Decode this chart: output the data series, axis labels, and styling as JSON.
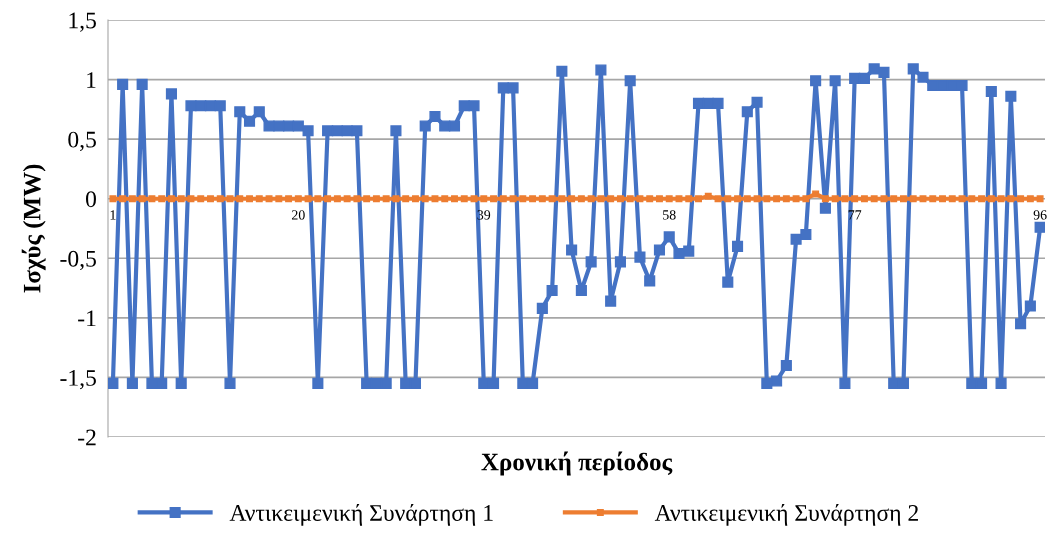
{
  "chart_data": {
    "type": "line",
    "xlabel": "Χρονική περίοδος",
    "ylabel": "Ισχύς (MW)",
    "categories": [
      "1",
      null,
      null,
      null,
      null,
      null,
      null,
      null,
      null,
      null,
      null,
      null,
      null,
      null,
      null,
      null,
      null,
      null,
      null,
      "20",
      null,
      null,
      null,
      null,
      null,
      null,
      null,
      null,
      null,
      null,
      null,
      null,
      null,
      null,
      null,
      null,
      null,
      null,
      "39",
      null,
      null,
      null,
      null,
      null,
      null,
      null,
      null,
      null,
      null,
      null,
      null,
      null,
      null,
      null,
      null,
      null,
      null,
      "58",
      null,
      null,
      null,
      null,
      null,
      null,
      null,
      null,
      null,
      null,
      null,
      null,
      null,
      null,
      null,
      null,
      null,
      null,
      "77",
      null,
      null,
      null,
      null,
      null,
      null,
      null,
      null,
      null,
      null,
      null,
      null,
      null,
      null,
      null,
      null,
      null,
      null,
      "96"
    ],
    "series": [
      {
        "name": "Αντικειμενική Συνάρτηση 1",
        "color": "#4472c4",
        "values": [
          -1.55,
          0.96,
          -1.55,
          0.96,
          -1.55,
          -1.55,
          0.88,
          -1.55,
          0.78,
          0.78,
          0.78,
          0.78,
          -1.55,
          0.73,
          0.65,
          0.73,
          0.61,
          0.61,
          0.61,
          0.61,
          0.57,
          -1.55,
          0.57,
          0.57,
          0.57,
          0.57,
          -1.55,
          -1.55,
          -1.55,
          0.57,
          -1.55,
          -1.55,
          0.61,
          0.69,
          0.61,
          0.61,
          0.78,
          0.78,
          -1.55,
          -1.55,
          0.93,
          0.93,
          -1.55,
          -1.55,
          -0.92,
          -0.77,
          1.07,
          -0.43,
          -0.77,
          -0.53,
          1.08,
          -0.86,
          -0.53,
          0.99,
          -0.49,
          -0.69,
          -0.43,
          -0.32,
          -0.46,
          -0.44,
          0.8,
          0.8,
          0.8,
          -0.7,
          -0.4,
          0.73,
          0.81,
          -1.55,
          -1.53,
          -1.4,
          -0.34,
          -0.3,
          0.99,
          -0.08,
          0.99,
          -1.55,
          1.01,
          1.01,
          1.09,
          1.06,
          -1.55,
          -1.55,
          1.09,
          1.02,
          0.95,
          0.95,
          0.95,
          0.95,
          -1.55,
          -1.55,
          0.9,
          -1.55,
          0.86,
          -1.05,
          -0.9,
          -0.24
        ]
      },
      {
        "name": "Αντικειμενική Συνάρτηση 2",
        "color": "#ed7d31",
        "values": [
          0,
          0,
          0,
          0,
          0,
          0,
          0,
          0,
          0,
          0,
          0,
          0,
          0,
          0,
          0,
          0,
          0,
          0,
          0,
          0,
          0,
          0,
          0,
          0,
          0,
          0,
          0,
          0,
          0,
          0,
          0,
          0,
          0,
          0,
          0,
          0,
          0,
          0,
          0,
          0,
          0,
          0,
          0,
          0,
          0,
          0,
          0,
          0,
          0,
          0,
          0,
          0,
          0,
          0,
          0,
          0,
          0,
          0,
          0,
          0,
          0,
          0.02,
          0,
          0,
          0,
          0,
          0,
          0,
          0,
          0,
          0,
          0,
          0.04,
          0,
          0,
          0,
          0,
          0,
          0,
          0,
          0,
          0,
          0,
          0,
          0,
          0,
          0,
          0,
          0,
          0,
          0,
          0,
          0,
          0,
          0,
          0
        ]
      }
    ],
    "ylim": [
      -2,
      1.5
    ],
    "yticks": [
      {
        "value": -2,
        "label": "-2"
      },
      {
        "value": -1.5,
        "label": "-1,5"
      },
      {
        "value": -1,
        "label": "-1"
      },
      {
        "value": -0.5,
        "label": "-0,5"
      },
      {
        "value": 0,
        "label": "0"
      },
      {
        "value": 0.5,
        "label": "0,5"
      },
      {
        "value": 1,
        "label": "1"
      },
      {
        "value": 1.5,
        "label": "1,5"
      }
    ],
    "grid": "y",
    "legend": "bottom",
    "marker": "square",
    "line_style": "solid"
  }
}
